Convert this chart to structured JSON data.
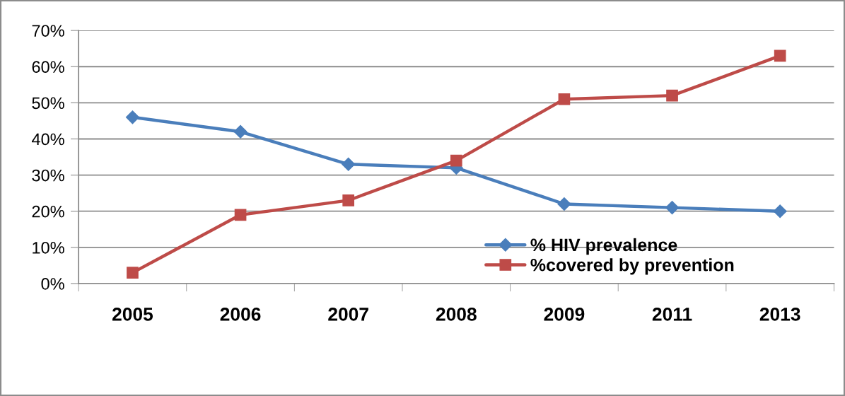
{
  "chart_data": {
    "type": "line",
    "categories": [
      "2005",
      "2006",
      "2007",
      "2008",
      "2009",
      "2011",
      "2013"
    ],
    "series": [
      {
        "name": "% HIV prevalence",
        "color": "#4a7ebb",
        "marker": "diamond",
        "values": [
          46,
          42,
          33,
          32,
          22,
          21,
          20
        ]
      },
      {
        "name": "%covered by prevention",
        "color": "#be4b48",
        "marker": "square",
        "values": [
          3,
          19,
          23,
          34,
          51,
          52,
          63
        ]
      }
    ],
    "ylim": [
      0,
      70
    ],
    "yticks": [
      {
        "value": 0,
        "label": "0%"
      },
      {
        "value": 10,
        "label": "10%"
      },
      {
        "value": 20,
        "label": "20%"
      },
      {
        "value": 30,
        "label": "30%"
      },
      {
        "value": 40,
        "label": "40%"
      },
      {
        "value": 50,
        "label": "50%"
      },
      {
        "value": 60,
        "label": "60%"
      },
      {
        "value": 70,
        "label": "70%"
      }
    ],
    "grid": "y",
    "legend": "bottom right",
    "line_style": "solid"
  }
}
